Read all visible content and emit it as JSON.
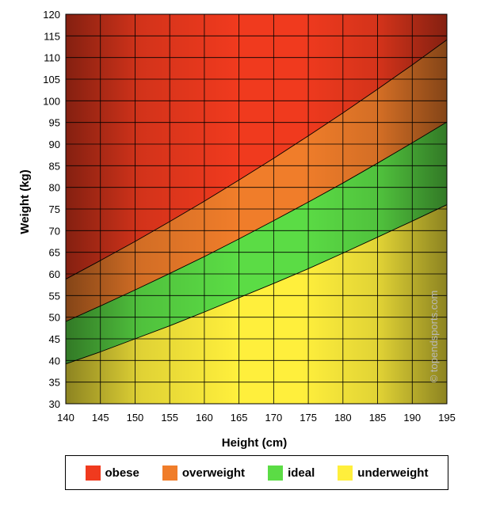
{
  "chart_data": {
    "type": "area",
    "xlabel": "Height (cm)",
    "ylabel": "Weight (kg)",
    "xlim": [
      140,
      195
    ],
    "ylim": [
      30,
      120
    ],
    "xticks": [
      140,
      145,
      150,
      155,
      160,
      165,
      170,
      175,
      180,
      185,
      190,
      195
    ],
    "yticks": [
      30,
      35,
      40,
      45,
      50,
      55,
      60,
      65,
      70,
      75,
      80,
      85,
      90,
      95,
      100,
      105,
      110,
      115,
      120
    ],
    "grid": true,
    "legend_position": "bottom",
    "boundaries": {
      "x": [
        140,
        145,
        150,
        155,
        160,
        165,
        170,
        175,
        180,
        185,
        190,
        195
      ],
      "underweight_upper": [
        39.2,
        42.0,
        45.0,
        48.0,
        51.2,
        54.5,
        57.8,
        61.2,
        64.8,
        68.5,
        72.2,
        76.0
      ],
      "ideal_upper": [
        49.0,
        52.6,
        56.3,
        60.1,
        64.0,
        68.1,
        72.3,
        76.6,
        81.0,
        85.6,
        90.3,
        95.1
      ],
      "overweight_upper": [
        58.8,
        63.1,
        67.5,
        72.1,
        76.8,
        81.7,
        86.7,
        91.9,
        97.2,
        102.7,
        108.3,
        114.1
      ]
    },
    "series": [
      {
        "name": "obese",
        "color": "#f03a1e"
      },
      {
        "name": "overweight",
        "color": "#f07d2a"
      },
      {
        "name": "ideal",
        "color": "#5bdc45"
      },
      {
        "name": "underweight",
        "color": "#ffef3c"
      }
    ],
    "watermark": "© topendsports.com"
  }
}
